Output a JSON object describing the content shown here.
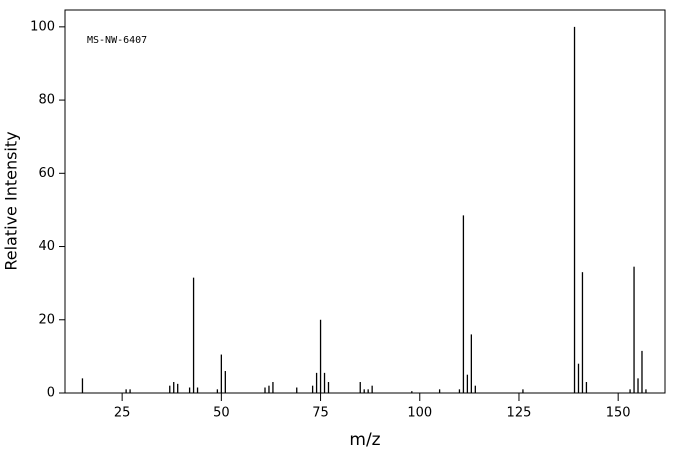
{
  "chart_data": {
    "type": "stem",
    "annotation": "MS-NW-6407",
    "x_label": "m/z",
    "y_label": "Relative Intensity",
    "color": "#000000",
    "x": [
      15,
      26,
      27,
      37,
      38,
      39,
      42,
      43,
      44,
      49,
      50,
      51,
      61,
      62,
      63,
      69,
      73,
      74,
      75,
      76,
      77,
      85,
      86,
      87,
      88,
      98,
      105,
      110,
      111,
      112,
      113,
      114,
      126,
      139,
      140,
      141,
      142,
      153,
      154,
      155,
      156,
      157
    ],
    "values": [
      4,
      1,
      1,
      2,
      3,
      2.5,
      1.5,
      31.5,
      1.5,
      1,
      10.5,
      6,
      1.5,
      2,
      3,
      1.5,
      2,
      5.5,
      20,
      5.5,
      3,
      3,
      1,
      1,
      2,
      0.5,
      1,
      1,
      48.5,
      5,
      16,
      2,
      1,
      100,
      8,
      33,
      3,
      1,
      34.5,
      4,
      11.5,
      1
    ],
    "xlim": [
      10.6,
      161.8
    ],
    "ylim": [
      0,
      104.6
    ],
    "xticks": [
      25,
      50,
      75,
      100,
      125,
      150
    ],
    "yticks": [
      0,
      20,
      40,
      60,
      80,
      100
    ]
  }
}
